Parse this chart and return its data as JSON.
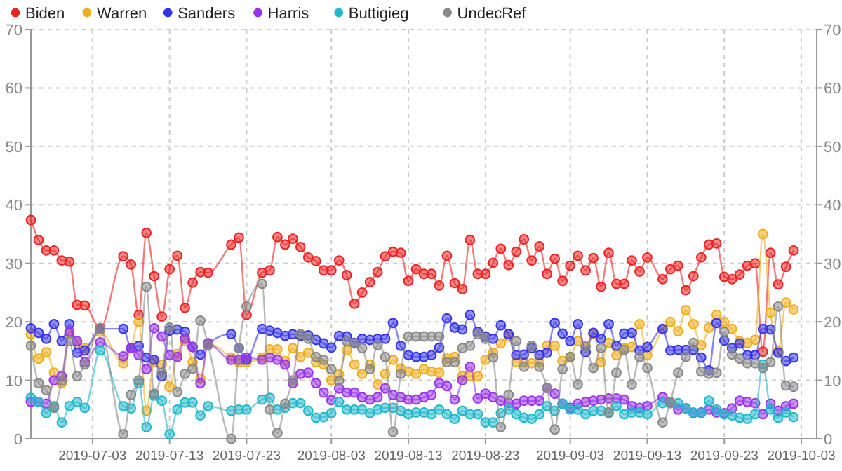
{
  "chart_data": {
    "type": "line",
    "x": [
      "2019-06-25",
      "2019-06-26",
      "2019-06-27",
      "2019-06-28",
      "2019-06-29",
      "2019-06-30",
      "2019-07-01",
      "2019-07-02",
      "2019-07-04",
      "2019-07-07",
      "2019-07-08",
      "2019-07-09",
      "2019-07-10",
      "2019-07-11",
      "2019-07-12",
      "2019-07-13",
      "2019-07-14",
      "2019-07-15",
      "2019-07-16",
      "2019-07-17",
      "2019-07-18",
      "2019-07-21",
      "2019-07-22",
      "2019-07-23",
      "2019-07-25",
      "2019-07-26",
      "2019-07-27",
      "2019-07-28",
      "2019-07-29",
      "2019-07-30",
      "2019-07-31",
      "2019-08-01",
      "2019-08-02",
      "2019-08-03",
      "2019-08-04",
      "2019-08-05",
      "2019-08-06",
      "2019-08-07",
      "2019-08-08",
      "2019-08-09",
      "2019-08-10",
      "2019-08-11",
      "2019-08-12",
      "2019-08-13",
      "2019-08-14",
      "2019-08-15",
      "2019-08-16",
      "2019-08-17",
      "2019-08-18",
      "2019-08-19",
      "2019-08-20",
      "2019-08-21",
      "2019-08-22",
      "2019-08-23",
      "2019-08-24",
      "2019-08-25",
      "2019-08-26",
      "2019-08-27",
      "2019-08-28",
      "2019-08-29",
      "2019-08-30",
      "2019-08-31",
      "2019-09-01",
      "2019-09-02",
      "2019-09-03",
      "2019-09-04",
      "2019-09-05",
      "2019-09-06",
      "2019-09-07",
      "2019-09-08",
      "2019-09-09",
      "2019-09-10",
      "2019-09-11",
      "2019-09-12",
      "2019-09-13",
      "2019-09-15",
      "2019-09-16",
      "2019-09-17",
      "2019-09-18",
      "2019-09-19",
      "2019-09-20",
      "2019-09-21",
      "2019-09-22",
      "2019-09-23",
      "2019-09-24",
      "2019-09-25",
      "2019-09-26",
      "2019-09-27",
      "2019-09-28",
      "2019-09-29",
      "2019-09-30",
      "2019-10-01",
      "2019-10-02"
    ],
    "series": [
      {
        "name": "Biden",
        "color": "#ee2222",
        "values": [
          37.4,
          34.0,
          32.2,
          32.2,
          30.5,
          30.3,
          22.9,
          22.8,
          18.9,
          31.2,
          29.8,
          21.2,
          35.2,
          27.8,
          20.9,
          29.0,
          31.3,
          22.4,
          26.7,
          28.5,
          28.4,
          33.2,
          34.4,
          21.2,
          28.4,
          28.8,
          34.5,
          33.2,
          34.2,
          32.8,
          31.0,
          30.4,
          28.8,
          28.8,
          30.5,
          28.0,
          23.1,
          25.0,
          26.8,
          28.5,
          31.2,
          32.0,
          31.8,
          27.0,
          29.0,
          28.2,
          28.2,
          26.2,
          31.3,
          26.6,
          25.6,
          34.0,
          28.2,
          28.2,
          30.1,
          32.5,
          29.7,
          32.0,
          34.1,
          30.5,
          32.9,
          28.2,
          30.8,
          27.0,
          29.6,
          31.3,
          28.8,
          30.9,
          26.0,
          31.8,
          26.5,
          26.5,
          30.5,
          28.6,
          31.0,
          27.3,
          29.0,
          29.6,
          25.4,
          27.8,
          31.0,
          33.2,
          33.4,
          27.7,
          27.3,
          28.1,
          29.6,
          30.0,
          14.9,
          31.8,
          26.4,
          29.4,
          32.2
        ]
      },
      {
        "name": "Warren",
        "color": "#f0ae1e",
        "values": [
          17.9,
          13.7,
          14.8,
          11.3,
          9.5,
          17.9,
          16.3,
          15.5,
          18.3,
          12.9,
          15.5,
          20.0,
          4.8,
          13.1,
          12.7,
          8.9,
          14.5,
          16.7,
          13.1,
          10.3,
          16.3,
          13.9,
          13.1,
          13.1,
          13.9,
          15.3,
          15.3,
          13.3,
          15.5,
          14.0,
          14.7,
          13.1,
          12.7,
          10.0,
          11.0,
          15.1,
          12.7,
          11.1,
          12.7,
          9.3,
          11.1,
          13.5,
          12.0,
          11.5,
          11.1,
          11.9,
          11.5,
          11.3,
          13.7,
          14.0,
          10.7,
          10.7,
          10.7,
          13.5,
          14.7,
          16.3,
          17.5,
          13.1,
          13.1,
          12.9,
          13.1,
          15.9,
          15.9,
          13.3,
          13.9,
          16.7,
          15.9,
          17.9,
          13.1,
          16.4,
          14.3,
          15.5,
          15.7,
          19.6,
          14.3,
          18.7,
          20.0,
          18.4,
          22.0,
          19.6,
          16.0,
          19.0,
          21.2,
          20.0,
          18.8,
          16.7,
          16.4,
          16.9,
          35.0,
          21.6,
          15.0,
          23.3,
          22.1
        ]
      },
      {
        "name": "Sanders",
        "color": "#3333ee",
        "values": [
          18.9,
          18.1,
          17.1,
          19.6,
          16.7,
          19.6,
          14.7,
          15.1,
          18.8,
          18.8,
          15.5,
          15.9,
          13.9,
          13.5,
          10.7,
          18.5,
          18.7,
          18.3,
          15.7,
          14.4,
          16.3,
          17.9,
          15.5,
          13.5,
          18.8,
          18.5,
          18.1,
          17.6,
          17.9,
          17.6,
          17.7,
          16.9,
          16.3,
          15.6,
          17.6,
          17.5,
          16.4,
          17.1,
          16.9,
          17.1,
          17.1,
          19.8,
          15.9,
          14.3,
          14.0,
          14.0,
          14.3,
          15.6,
          20.6,
          19.0,
          18.7,
          21.2,
          18.3,
          17.5,
          17.1,
          19.4,
          17.9,
          14.3,
          14.4,
          15.5,
          14.3,
          14.7,
          19.8,
          18.0,
          16.7,
          19.6,
          14.8,
          18.1,
          17.1,
          19.6,
          15.9,
          18.0,
          18.1,
          15.1,
          15.7,
          18.8,
          15.1,
          15.2,
          15.2,
          15.2,
          13.9,
          11.7,
          19.8,
          16.8,
          15.5,
          16.3,
          14.3,
          14.3,
          18.8,
          18.7,
          14.7,
          13.3,
          13.9
        ]
      },
      {
        "name": "Harris",
        "color": "#9933ee",
        "values": [
          6.3,
          6.3,
          6.0,
          10.0,
          10.7,
          18.3,
          16.7,
          13.1,
          16.5,
          14.1,
          15.5,
          14.3,
          11.9,
          18.9,
          17.5,
          14.3,
          14.0,
          17.1,
          15.7,
          9.5,
          16.3,
          13.5,
          13.5,
          13.9,
          13.5,
          13.9,
          13.5,
          12.7,
          9.5,
          11.1,
          11.3,
          9.5,
          7.9,
          6.6,
          8.6,
          7.9,
          7.9,
          7.1,
          6.7,
          7.1,
          8.6,
          7.5,
          7.1,
          6.7,
          6.7,
          7.1,
          7.5,
          9.5,
          9.0,
          6.7,
          10.0,
          12.3,
          6.9,
          7.7,
          7.1,
          6.5,
          6.1,
          6.0,
          6.5,
          6.5,
          6.5,
          8.7,
          7.7,
          6.0,
          5.3,
          6.0,
          6.3,
          6.5,
          6.7,
          6.9,
          6.9,
          6.7,
          5.6,
          5.3,
          5.6,
          7.1,
          6.1,
          5.0,
          5.2,
          4.4,
          4.5,
          5.0,
          4.5,
          4.4,
          5.2,
          6.5,
          6.3,
          6.1,
          4.2,
          6.0,
          4.8,
          5.6,
          6.0
        ]
      },
      {
        "name": "Buttigieg",
        "color": "#22b8cc",
        "values": [
          7.0,
          6.3,
          4.4,
          5.6,
          2.8,
          5.6,
          6.3,
          5.3,
          15.1,
          5.6,
          5.2,
          9.5,
          2.0,
          7.4,
          6.5,
          0.8,
          5.0,
          6.2,
          6.2,
          4.0,
          5.6,
          4.8,
          5.0,
          5.0,
          6.7,
          7.0,
          5.0,
          5.3,
          6.1,
          6.1,
          4.8,
          3.6,
          3.7,
          4.4,
          6.3,
          5.0,
          5.0,
          5.0,
          4.4,
          5.0,
          5.3,
          5.3,
          4.8,
          4.2,
          4.5,
          4.5,
          4.2,
          5.0,
          4.2,
          3.4,
          4.8,
          4.2,
          4.2,
          2.8,
          2.8,
          4.4,
          5.0,
          4.2,
          3.6,
          3.4,
          4.2,
          5.6,
          4.8,
          6.0,
          5.0,
          5.0,
          4.2,
          4.8,
          4.8,
          4.4,
          5.6,
          4.2,
          4.5,
          4.5,
          4.2,
          6.1,
          6.1,
          6.1,
          5.2,
          4.5,
          4.4,
          6.5,
          5.0,
          4.2,
          4.0,
          3.6,
          3.4,
          4.2,
          12.7,
          5.0,
          3.6,
          4.5,
          3.7
        ]
      },
      {
        "name": "UndecRef",
        "color": "#888888",
        "values": [
          15.9,
          9.5,
          8.3,
          5.3,
          9.9,
          16.7,
          10.7,
          12.7,
          18.8,
          0.8,
          7.5,
          10.0,
          26.0,
          7.7,
          11.3,
          19.0,
          8.0,
          11.1,
          12.0,
          20.2,
          16.0,
          0.0,
          15.5,
          22.6,
          26.5,
          5.0,
          1.0,
          6.0,
          10.0,
          17.9,
          17.1,
          14.0,
          13.5,
          11.9,
          9.9,
          16.7,
          16.3,
          15.5,
          11.9,
          16.0,
          14.0,
          1.2,
          11.1,
          17.5,
          17.5,
          17.5,
          17.5,
          17.5,
          13.1,
          13.1,
          15.5,
          15.9,
          17.9,
          17.1,
          13.9,
          2.0,
          7.5,
          16.7,
          12.3,
          15.9,
          12.3,
          8.7,
          1.6,
          11.9,
          14.0,
          9.3,
          15.7,
          12.1,
          15.5,
          4.5,
          11.3,
          15.2,
          9.3,
          14.0,
          12.1,
          2.8,
          6.3,
          11.3,
          14.0,
          16.4,
          11.5,
          11.1,
          11.3,
          18.3,
          14.4,
          13.7,
          12.9,
          12.9,
          12.1,
          13.1,
          22.6,
          9.1,
          8.9
        ]
      }
    ],
    "xlim": [
      "2019-06-25",
      "2019-10-05"
    ],
    "xticks": [
      "2019-07-03",
      "2019-07-13",
      "2019-07-23",
      "2019-08-03",
      "2019-08-13",
      "2019-08-23",
      "2019-09-03",
      "2019-09-13",
      "2019-09-23",
      "2019-10-03"
    ],
    "ylim": [
      0,
      70
    ],
    "yticks": [
      0,
      10,
      20,
      30,
      40,
      50,
      60,
      70
    ],
    "y2lim": [
      0,
      70
    ],
    "y2ticks": [
      0,
      10,
      20,
      30,
      40,
      50,
      60,
      70
    ],
    "grid": true,
    "legend": "top left",
    "marker": "circle",
    "line_style": "solid"
  }
}
